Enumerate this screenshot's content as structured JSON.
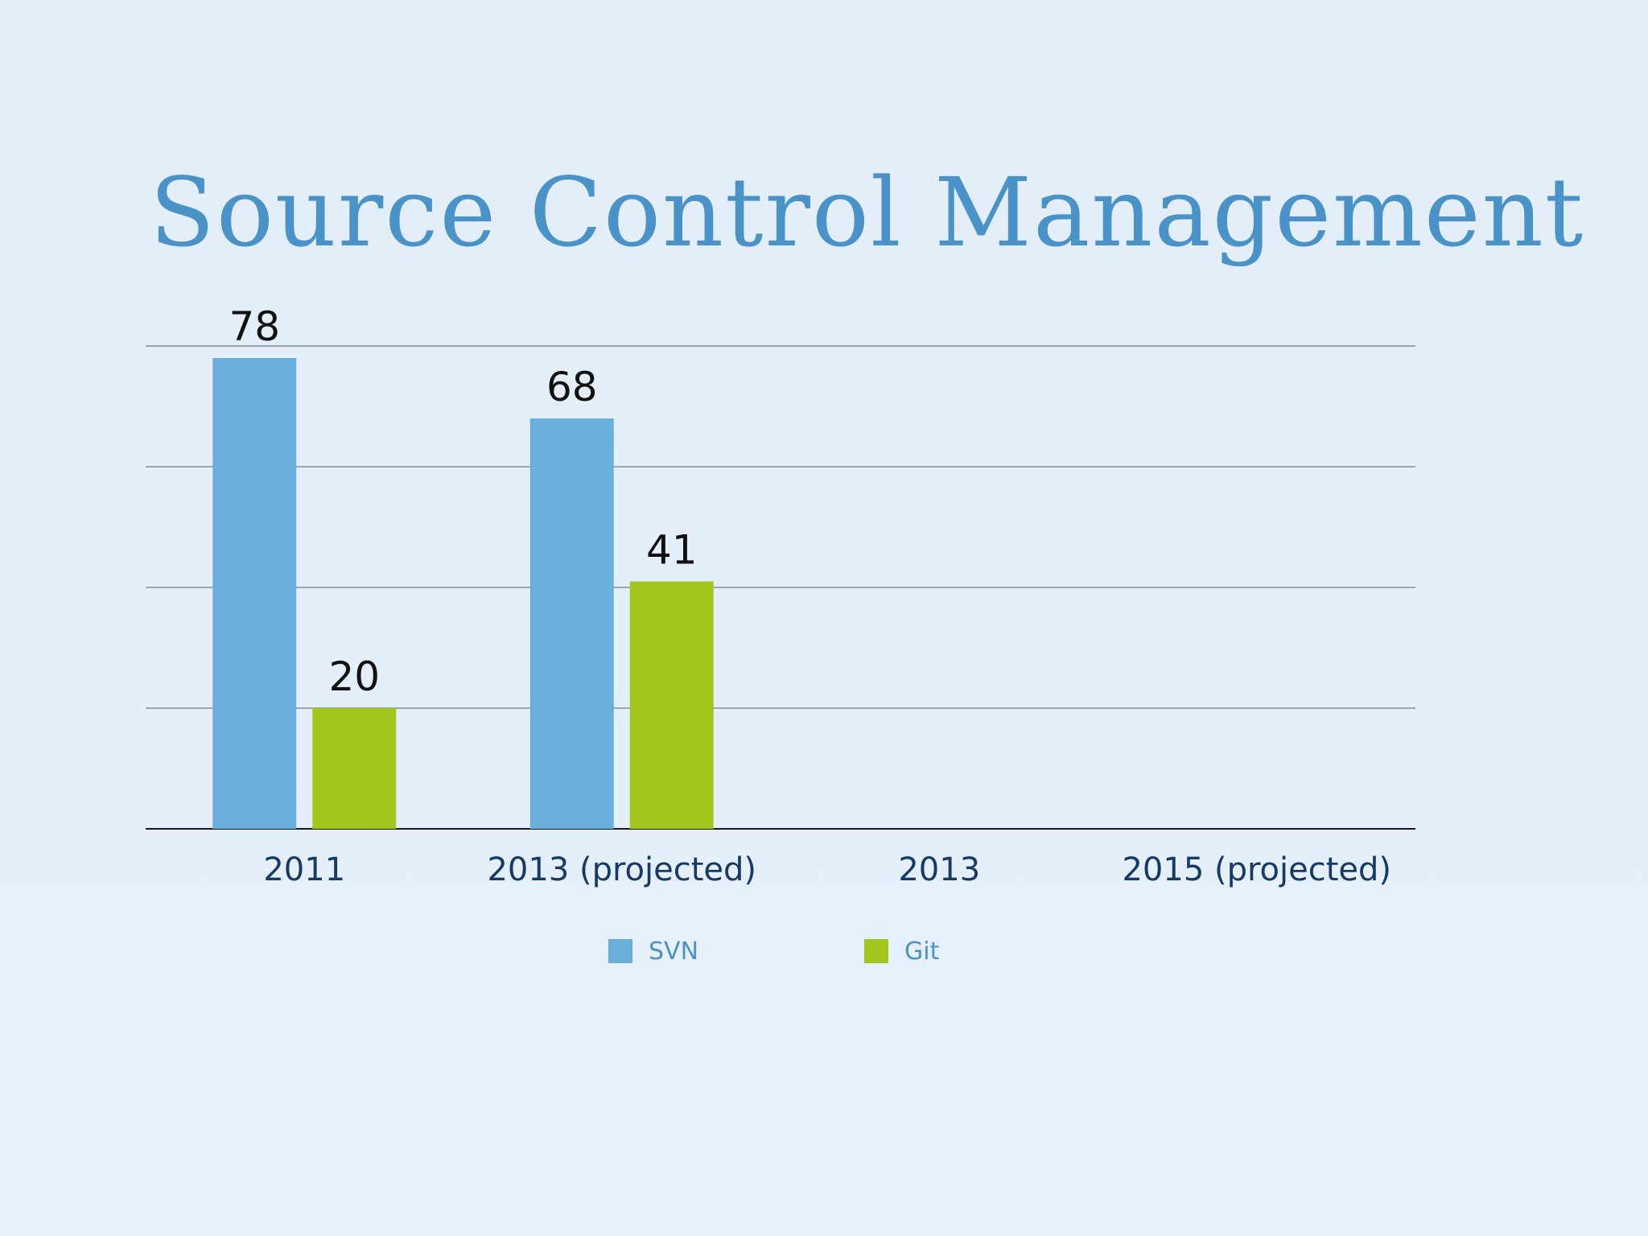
{
  "chart_data": {
    "type": "bar",
    "title": "Source Control Management",
    "categories": [
      "2011",
      "2013 (projected)",
      "2013",
      "2015 (projected)"
    ],
    "series": [
      {
        "name": "SVN",
        "color": "#6aafdc",
        "values": [
          78,
          68,
          null,
          null
        ]
      },
      {
        "name": "Git",
        "color": "#a1c61e",
        "values": [
          20,
          41,
          null,
          null
        ]
      }
    ],
    "ylim": [
      0,
      80
    ],
    "grid": true,
    "legend_position": "bottom",
    "xlabel": "",
    "ylabel": ""
  }
}
